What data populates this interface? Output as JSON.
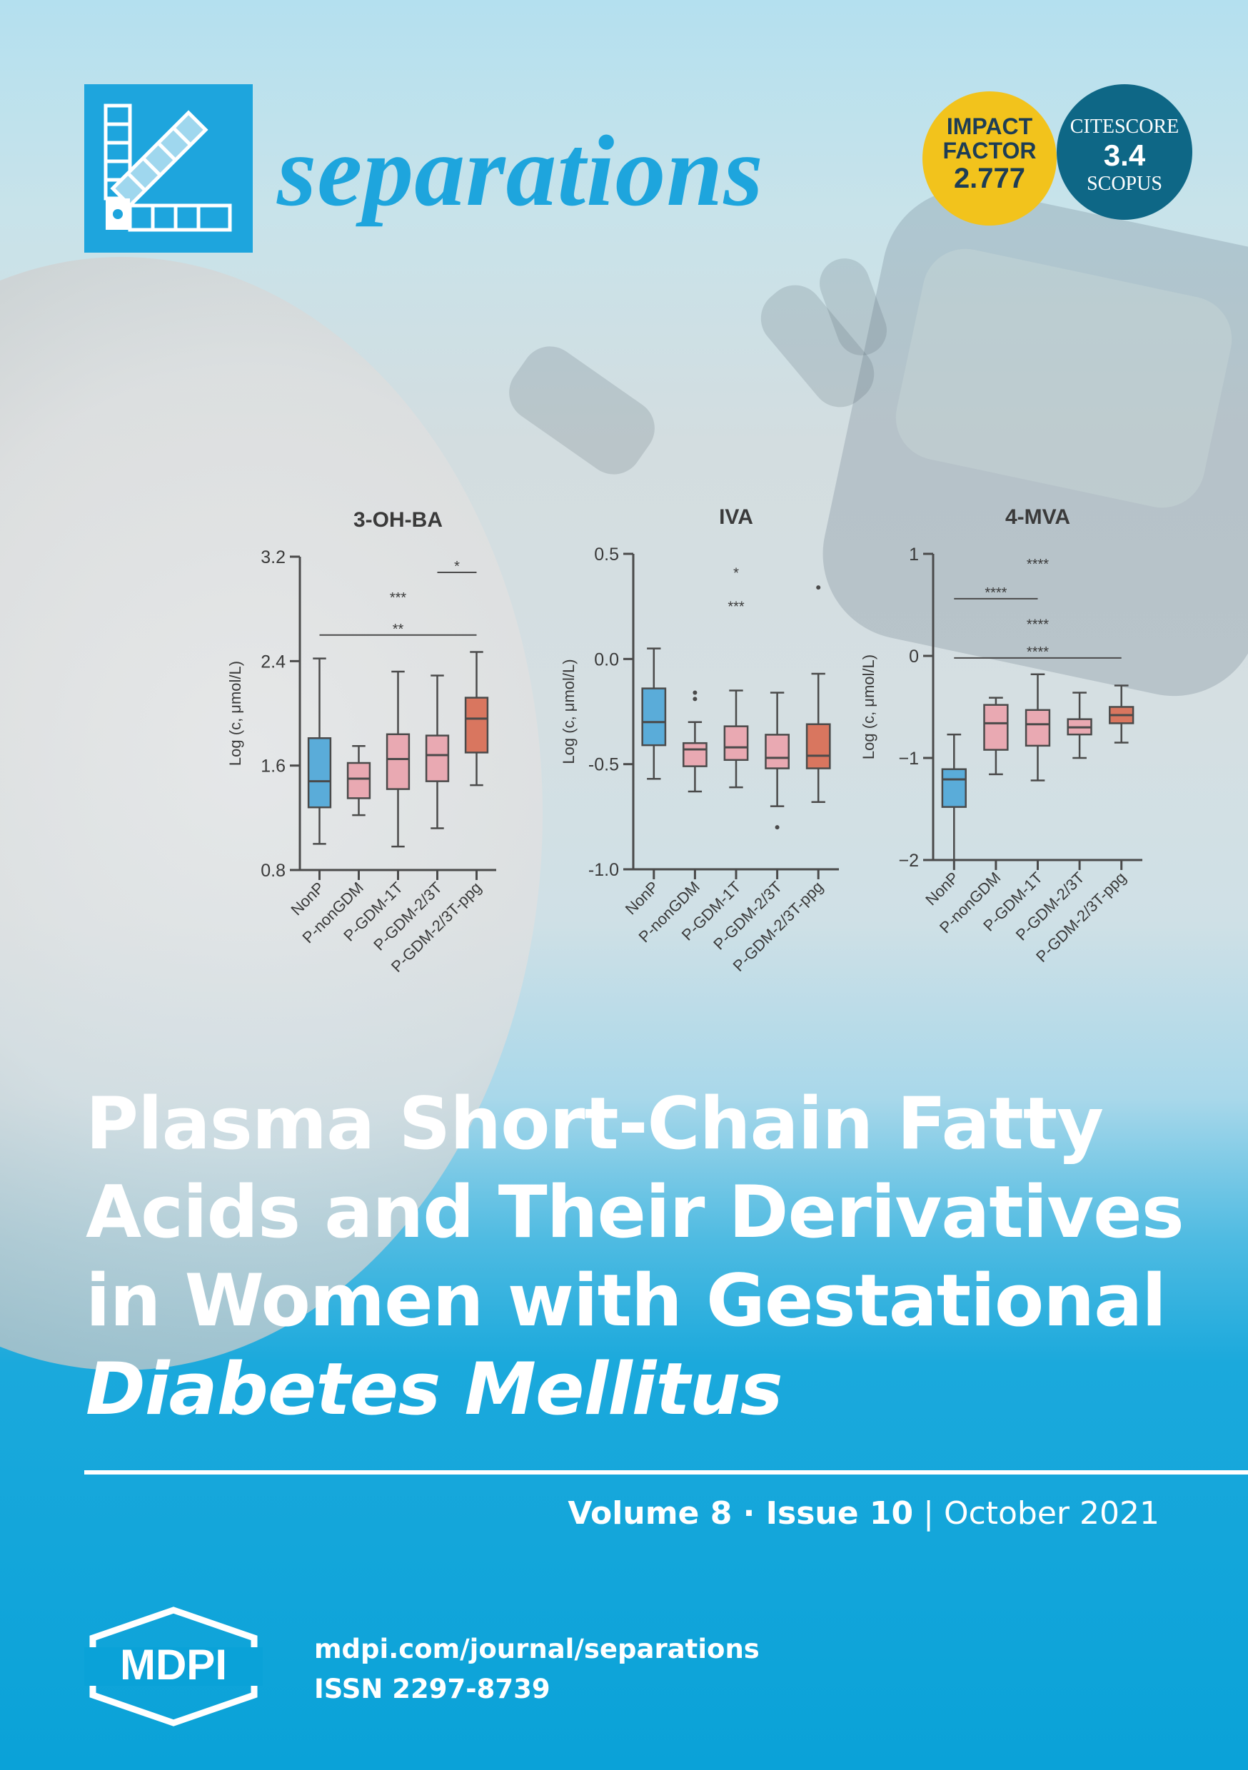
{
  "journal": {
    "name": "separations"
  },
  "badges": {
    "impact_factor": {
      "line1": "IMPACT",
      "line2": "FACTOR",
      "value": "2.777"
    },
    "citescore": {
      "line1": "CITESCORE",
      "value": "3.4",
      "line2": "SCOPUS"
    }
  },
  "colors": {
    "accent": "#1ea5dd",
    "badge_yellow": "#f2c31c",
    "badge_teal": "#0e6786",
    "box_blue": "#5aacd9",
    "box_pink": "#e9a9b2",
    "box_orange": "#d9765f"
  },
  "chart_data": [
    {
      "type": "box",
      "title": "3-OH-BA",
      "ylabel": "Log (c, μmol/L)",
      "ylim": [
        0.8,
        3.2
      ],
      "yticks": [
        "0.8",
        "1.6",
        "2.4",
        "3.2"
      ],
      "categories": [
        "NonP",
        "P-nonGDM",
        "P-GDM-1T",
        "P-GDM-2/3T",
        "P-GDM-2/3T-ppg"
      ],
      "boxes": [
        {
          "min": 1.0,
          "q1": 1.28,
          "median": 1.48,
          "q3": 1.81,
          "max": 2.42
        },
        {
          "min": 1.22,
          "q1": 1.35,
          "median": 1.5,
          "q3": 1.62,
          "max": 1.75
        },
        {
          "min": 0.98,
          "q1": 1.42,
          "median": 1.65,
          "q3": 1.84,
          "max": 2.32
        },
        {
          "min": 1.12,
          "q1": 1.48,
          "median": 1.68,
          "q3": 1.83,
          "max": 2.29
        },
        {
          "min": 1.45,
          "q1": 1.7,
          "median": 1.96,
          "q3": 2.12,
          "max": 2.47
        }
      ],
      "significance": [
        {
          "label": "*",
          "from": 3,
          "to": 4,
          "y": 3.08
        },
        {
          "label": "***",
          "from": null,
          "to": null,
          "y": 2.84
        },
        {
          "label": "**",
          "from": 0,
          "to": 4,
          "y": 2.6
        }
      ]
    },
    {
      "type": "box",
      "title": "IVA",
      "ylabel": "Log (c, μmol/L)",
      "ylim": [
        -1.0,
        0.5
      ],
      "yticks": [
        "-1.0",
        "-0.5",
        "0.0",
        "0.5"
      ],
      "categories": [
        "NonP",
        "P-nonGDM",
        "P-GDM-1T",
        "P-GDM-2/3T",
        "P-GDM-2/3T-ppg"
      ],
      "boxes": [
        {
          "min": -0.57,
          "q1": -0.41,
          "median": -0.3,
          "q3": -0.14,
          "max": 0.05
        },
        {
          "min": -0.63,
          "q1": -0.51,
          "median": -0.43,
          "q3": -0.4,
          "max": -0.3
        },
        {
          "min": -0.61,
          "q1": -0.48,
          "median": -0.42,
          "q3": -0.32,
          "max": -0.15
        },
        {
          "min": -0.7,
          "q1": -0.52,
          "median": -0.47,
          "q3": -0.36,
          "max": -0.16
        },
        {
          "min": -0.68,
          "q1": -0.52,
          "median": -0.46,
          "q3": -0.31,
          "max": -0.07
        }
      ],
      "outliers": [
        {
          "box": 1,
          "value": -0.16
        },
        {
          "box": 1,
          "value": -0.19
        },
        {
          "box": 3,
          "value": -0.8
        },
        {
          "box": 4,
          "value": 0.34
        }
      ],
      "significance": [
        {
          "label": "*",
          "y": 0.38
        },
        {
          "label": "***",
          "y": 0.22
        }
      ]
    },
    {
      "type": "box",
      "title": "4-MVA",
      "ylabel": "Log (c, μmol/L)",
      "ylim": [
        -2,
        1
      ],
      "yticks": [
        "−2",
        "−1",
        "0",
        "1"
      ],
      "categories": [
        "NonP",
        "P-nonGDM",
        "P-GDM-1T",
        "P-GDM-2/3T",
        "P-GDM-2/3T-ppg"
      ],
      "boxes": [
        {
          "min": -2.0,
          "q1": -1.48,
          "median": -1.21,
          "q3": -1.11,
          "max": -0.77
        },
        {
          "min": -1.16,
          "q1": -0.92,
          "median": -0.66,
          "q3": -0.48,
          "max": -0.41
        },
        {
          "min": -1.22,
          "q1": -0.88,
          "median": -0.67,
          "q3": -0.53,
          "max": -0.18
        },
        {
          "min": -1.0,
          "q1": -0.77,
          "median": -0.7,
          "q3": -0.62,
          "max": -0.36
        },
        {
          "min": -0.85,
          "q1": -0.66,
          "median": -0.58,
          "q3": -0.5,
          "max": -0.29
        }
      ],
      "significance": [
        {
          "label": "****",
          "y": 0.84
        },
        {
          "label": "****",
          "from": 0,
          "to": 2,
          "y": 0.56
        },
        {
          "label": "****",
          "y": 0.25
        },
        {
          "label": "****",
          "from": 0,
          "to": 4,
          "y": -0.02
        }
      ]
    }
  ],
  "title": {
    "line1": "Plasma Short-Chain Fatty",
    "line2": "Acids and Their Derivatives",
    "line3": "in Women with Gestational",
    "line4": "Diabetes Mellitus"
  },
  "issue": {
    "volume": "Volume 8",
    "sep": " · ",
    "issue": "Issue 10",
    "bar": " | ",
    "date": "October 2021"
  },
  "publisher": {
    "name": "MDPI",
    "url": "mdpi.com/journal/separations",
    "issn": "ISSN 2297-8739"
  }
}
